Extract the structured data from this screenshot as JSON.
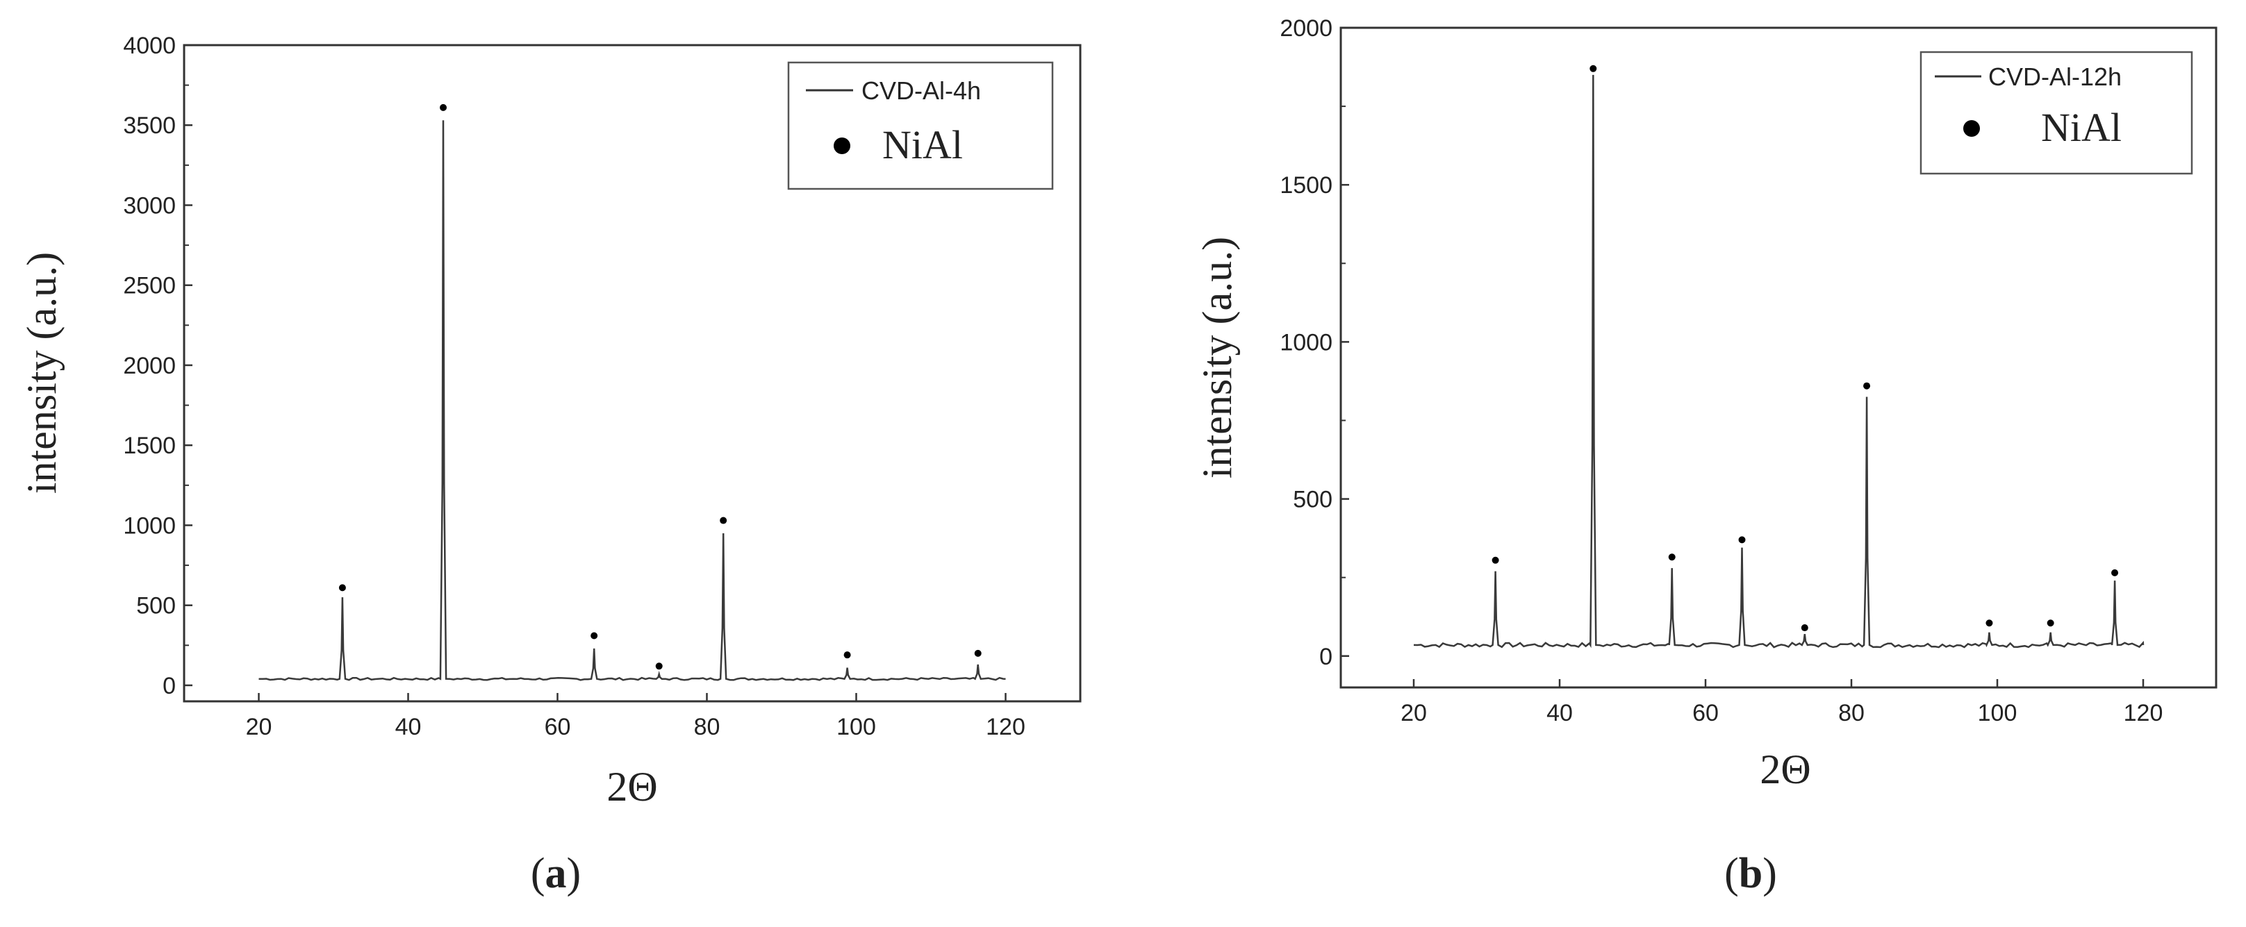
{
  "chart_data": [
    {
      "type": "line",
      "panel_label": {
        "open": "(",
        "letter": "a",
        "close": ")"
      },
      "xlabel": "2Θ",
      "ylabel": "intensity (a.u.)",
      "xlim": [
        10,
        130
      ],
      "ylim": [
        -100,
        4000
      ],
      "xticks": [
        20,
        40,
        60,
        80,
        100,
        120
      ],
      "yticks": [
        0,
        500,
        1000,
        1500,
        2000,
        2500,
        3000,
        3500,
        4000
      ],
      "grid": false,
      "legend_position": "top-right",
      "legend": {
        "line": "CVD-Al-4h",
        "marker": "NiAl"
      },
      "baseline": 40,
      "series": [
        {
          "name": "CVD-Al-4h",
          "x_range": [
            20,
            120
          ],
          "peaks": [
            {
              "x": 31.2,
              "y": 550
            },
            {
              "x": 44.7,
              "y": 3530
            },
            {
              "x": 64.9,
              "y": 230
            },
            {
              "x": 73.6,
              "y": 70
            },
            {
              "x": 82.2,
              "y": 950
            },
            {
              "x": 98.8,
              "y": 110
            },
            {
              "x": 116.3,
              "y": 130
            }
          ]
        }
      ],
      "markers": {
        "name": "NiAl",
        "x": [
          31.2,
          44.7,
          64.9,
          73.6,
          82.2,
          98.8,
          116.3
        ],
        "y": [
          610,
          3610,
          310,
          120,
          1030,
          190,
          200
        ]
      }
    },
    {
      "type": "line",
      "panel_label": {
        "open": "(",
        "letter": "b",
        "close": ")"
      },
      "xlabel": "2Θ",
      "ylabel": "intensity (a.u.)",
      "xlim": [
        10,
        130
      ],
      "ylim": [
        -100,
        2000
      ],
      "xticks": [
        20,
        40,
        60,
        80,
        100,
        120
      ],
      "yticks": [
        0,
        500,
        1000,
        1500,
        2000
      ],
      "grid": false,
      "legend_position": "top-right",
      "legend": {
        "line": "CVD-Al-12h",
        "marker": "NiAl"
      },
      "baseline": 35,
      "series": [
        {
          "name": "CVD-Al-12h",
          "x_range": [
            20,
            120
          ],
          "peaks": [
            {
              "x": 31.2,
              "y": 270
            },
            {
              "x": 44.6,
              "y": 1850
            },
            {
              "x": 55.4,
              "y": 280
            },
            {
              "x": 65.0,
              "y": 345
            },
            {
              "x": 73.6,
              "y": 70
            },
            {
              "x": 82.1,
              "y": 825
            },
            {
              "x": 98.9,
              "y": 75
            },
            {
              "x": 107.3,
              "y": 75
            },
            {
              "x": 116.1,
              "y": 240
            }
          ]
        }
      ],
      "markers": {
        "name": "NiAl",
        "x": [
          31.2,
          44.6,
          55.4,
          65.0,
          73.6,
          82.1,
          98.9,
          107.3,
          116.1
        ],
        "y": [
          305,
          1870,
          315,
          370,
          90,
          860,
          105,
          105,
          265
        ]
      }
    }
  ]
}
